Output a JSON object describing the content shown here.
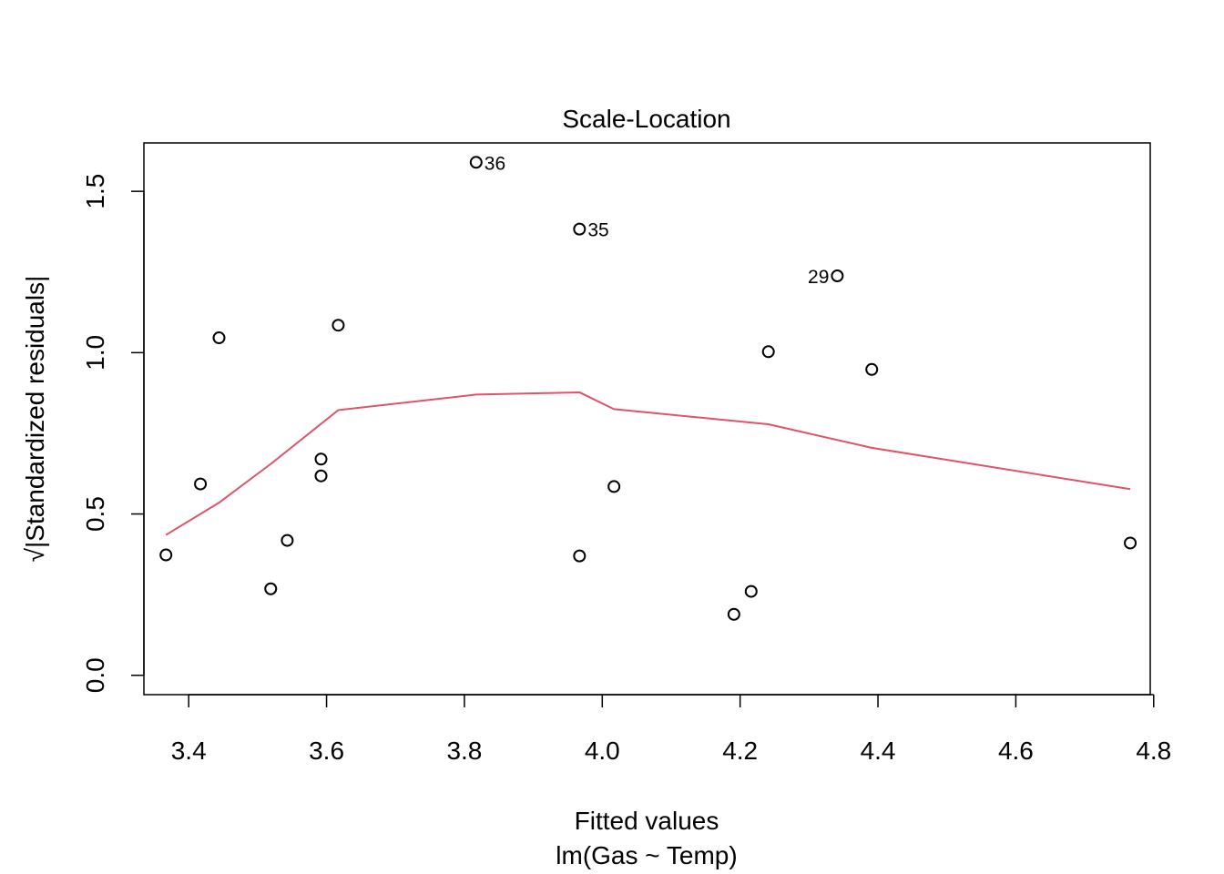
{
  "chart_data": {
    "type": "scatter",
    "title": "Scale-Location",
    "xlabel": "Fitted values",
    "xsublabel": "lm(Gas ~ Temp)",
    "ylabel": "√|Standardized residuals|",
    "xlim": [
      3.335,
      4.795
    ],
    "ylim": [
      -0.06,
      1.65
    ],
    "x_ticks": [
      3.4,
      3.6,
      3.8,
      4.0,
      4.2,
      4.4,
      4.6,
      4.8
    ],
    "x_tick_labels": [
      "3.4",
      "3.6",
      "3.8",
      "4.0",
      "4.2",
      "4.4",
      "4.6",
      "4.8"
    ],
    "y_ticks": [
      0.0,
      0.5,
      1.0,
      1.5
    ],
    "y_tick_labels": [
      "0.0",
      "0.5",
      "1.0",
      "1.5"
    ],
    "points": [
      {
        "x": 3.367,
        "y": 0.373
      },
      {
        "x": 3.417,
        "y": 0.593
      },
      {
        "x": 3.444,
        "y": 1.046
      },
      {
        "x": 3.519,
        "y": 0.268
      },
      {
        "x": 3.543,
        "y": 0.418
      },
      {
        "x": 3.592,
        "y": 0.67
      },
      {
        "x": 3.592,
        "y": 0.618
      },
      {
        "x": 3.617,
        "y": 1.085
      },
      {
        "x": 3.817,
        "y": 1.59,
        "label": "36"
      },
      {
        "x": 3.967,
        "y": 1.383,
        "label": "35"
      },
      {
        "x": 3.967,
        "y": 0.37
      },
      {
        "x": 4.017,
        "y": 0.585
      },
      {
        "x": 4.191,
        "y": 0.189
      },
      {
        "x": 4.216,
        "y": 0.26
      },
      {
        "x": 4.241,
        "y": 1.003
      },
      {
        "x": 4.341,
        "y": 1.238,
        "label": "29"
      },
      {
        "x": 4.391,
        "y": 0.948
      },
      {
        "x": 4.766,
        "y": 0.41
      }
    ],
    "smooth_line": {
      "color": "#DF536B",
      "x": [
        3.367,
        3.444,
        3.519,
        3.617,
        3.817,
        3.967,
        4.017,
        4.241,
        4.391,
        4.766
      ],
      "y": [
        0.435,
        0.535,
        0.655,
        0.822,
        0.87,
        0.877,
        0.825,
        0.778,
        0.705,
        0.577
      ]
    },
    "grid": false,
    "legend": "none"
  }
}
